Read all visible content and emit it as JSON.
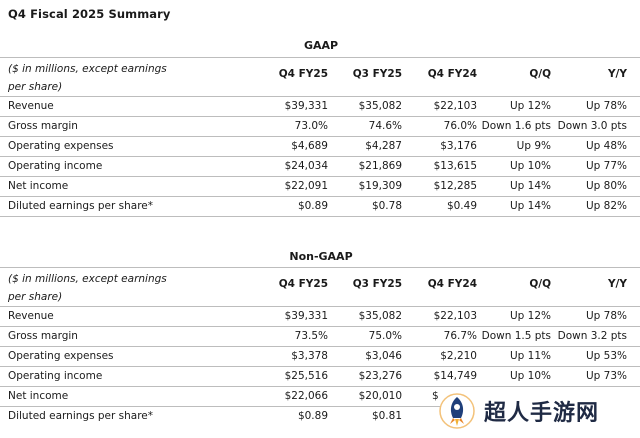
{
  "title": "Q4 Fiscal 2025 Summary",
  "watermark_text": "超人手游网",
  "sections": [
    {
      "heading": "GAAP",
      "note": "($ in millions, except earnings per share)",
      "columns": [
        "Q4 FY25",
        "Q3 FY25",
        "Q4 FY24",
        "Q/Q",
        "Y/Y"
      ],
      "rows": [
        {
          "label": "Revenue",
          "cells": [
            "$39,331",
            "$35,082",
            "$22,103",
            "Up 12%",
            "Up 78%"
          ]
        },
        {
          "label": "Gross margin",
          "cells": [
            "73.0%",
            "74.6%",
            "76.0%",
            "Down 1.6 pts",
            "Down 3.0 pts"
          ]
        },
        {
          "label": "Operating expenses",
          "cells": [
            "$4,689",
            "$4,287",
            "$3,176",
            "Up 9%",
            "Up 48%"
          ]
        },
        {
          "label": "Operating income",
          "cells": [
            "$24,034",
            "$21,869",
            "$13,615",
            "Up 10%",
            "Up 77%"
          ]
        },
        {
          "label": "Net income",
          "cells": [
            "$22,091",
            "$19,309",
            "$12,285",
            "Up 14%",
            "Up 80%"
          ]
        },
        {
          "label": "Diluted earnings per share*",
          "cells": [
            "$0.89",
            "$0.78",
            "$0.49",
            "Up 14%",
            "Up 82%"
          ]
        }
      ]
    },
    {
      "heading": "Non-GAAP",
      "note": "($ in millions, except earnings per share)",
      "columns": [
        "Q4 FY25",
        "Q3 FY25",
        "Q4 FY24",
        "Q/Q",
        "Y/Y"
      ],
      "rows": [
        {
          "label": "Revenue",
          "cells": [
            "$39,331",
            "$35,082",
            "$22,103",
            "Up 12%",
            "Up 78%"
          ]
        },
        {
          "label": "Gross margin",
          "cells": [
            "73.5%",
            "75.0%",
            "76.7%",
            "Down 1.5 pts",
            "Down 3.2 pts"
          ]
        },
        {
          "label": "Operating expenses",
          "cells": [
            "$3,378",
            "$3,046",
            "$2,210",
            "Up 11%",
            "Up 53%"
          ]
        },
        {
          "label": "Operating income",
          "cells": [
            "$25,516",
            "$23,276",
            "$14,749",
            "Up 10%",
            "Up 73%"
          ]
        },
        {
          "label": "Net income",
          "cells": [
            "$22,066",
            "$20,010",
            "$",
            "",
            ""
          ]
        },
        {
          "label": "Diluted earnings per share*",
          "cells": [
            "$0.89",
            "$0.81",
            "",
            "",
            ""
          ]
        }
      ]
    }
  ]
}
